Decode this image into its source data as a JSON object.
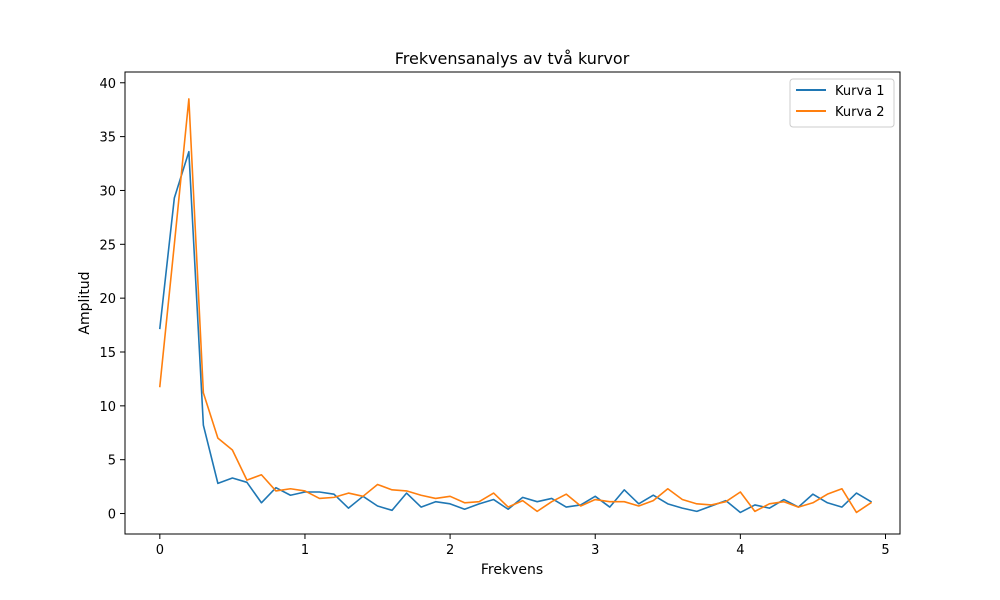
{
  "chart_data": {
    "type": "line",
    "title": "Frekvensanalys av två kurvor",
    "xlabel": "Frekvens",
    "ylabel": "Amplitud",
    "xlim": [
      -0.24,
      5.1
    ],
    "ylim": [
      -1.9,
      41.0
    ],
    "xticks": [
      0,
      1,
      2,
      3,
      4,
      5
    ],
    "yticks": [
      0,
      5,
      10,
      15,
      20,
      25,
      30,
      35,
      40
    ],
    "grid": false,
    "legend_position": "top-right",
    "x": [
      0.0,
      0.1,
      0.2,
      0.3,
      0.4,
      0.5,
      0.6,
      0.7,
      0.8,
      0.9,
      1.0,
      1.1,
      1.2,
      1.3,
      1.4,
      1.5,
      1.6,
      1.7,
      1.8,
      1.9,
      2.0,
      2.1,
      2.2,
      2.3,
      2.4,
      2.5,
      2.6,
      2.7,
      2.8,
      2.9,
      3.0,
      3.1,
      3.2,
      3.3,
      3.4,
      3.5,
      3.6,
      3.7,
      3.8,
      3.9,
      4.0,
      4.1,
      4.2,
      4.3,
      4.4,
      4.5,
      4.6,
      4.7,
      4.8,
      4.9
    ],
    "series": [
      {
        "name": "Kurva 1",
        "color": "#1f77b4",
        "values": [
          17.2,
          29.3,
          33.6,
          8.2,
          2.8,
          3.3,
          2.9,
          1.0,
          2.4,
          1.7,
          2.0,
          2.0,
          1.8,
          0.5,
          1.6,
          0.7,
          0.3,
          1.9,
          0.6,
          1.1,
          0.9,
          0.4,
          0.9,
          1.3,
          0.4,
          1.5,
          1.1,
          1.4,
          0.6,
          0.8,
          1.6,
          0.6,
          2.2,
          0.9,
          1.7,
          0.9,
          0.5,
          0.2,
          0.7,
          1.2,
          0.1,
          0.8,
          0.5,
          1.3,
          0.6,
          1.8,
          1.0,
          0.6,
          1.9,
          1.1
        ]
      },
      {
        "name": "Kurva 2",
        "color": "#ff7f0e",
        "values": [
          11.8,
          25.0,
          38.5,
          11.2,
          7.0,
          5.9,
          3.1,
          3.6,
          2.1,
          2.3,
          2.1,
          1.4,
          1.5,
          1.9,
          1.6,
          2.7,
          2.2,
          2.1,
          1.7,
          1.4,
          1.6,
          1.0,
          1.1,
          1.9,
          0.6,
          1.2,
          0.2,
          1.1,
          1.8,
          0.7,
          1.3,
          1.1,
          1.1,
          0.7,
          1.2,
          2.3,
          1.3,
          0.9,
          0.8,
          1.1,
          2.0,
          0.2,
          0.9,
          1.1,
          0.6,
          1.0,
          1.8,
          2.3,
          0.1,
          1.0
        ]
      }
    ]
  }
}
